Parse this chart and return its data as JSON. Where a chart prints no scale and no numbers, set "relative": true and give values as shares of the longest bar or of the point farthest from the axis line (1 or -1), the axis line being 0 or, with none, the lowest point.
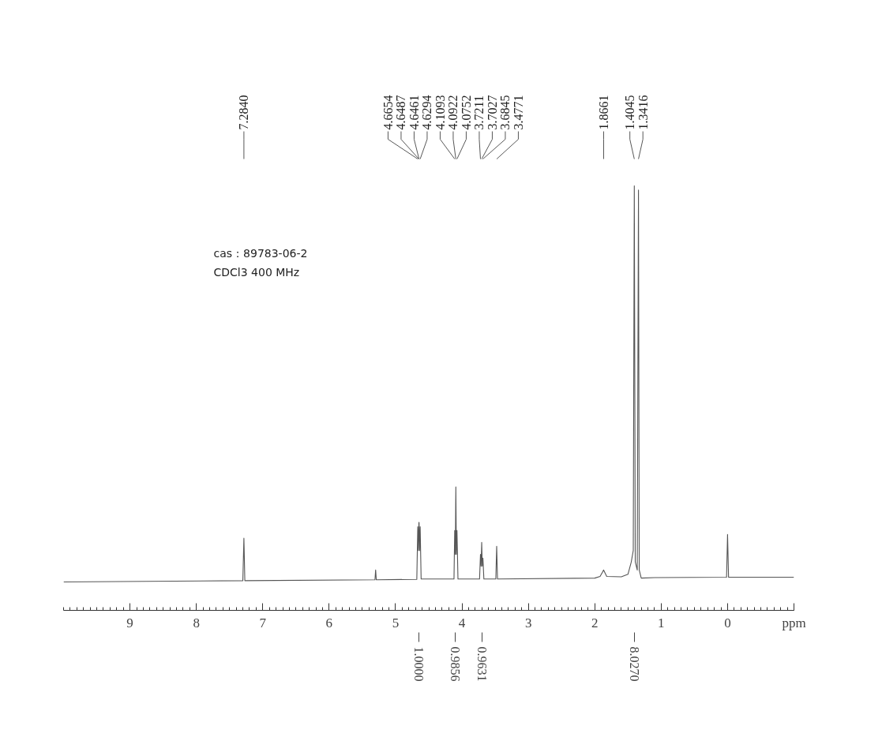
{
  "chart_data": {
    "type": "line",
    "relative": true,
    "xlabel": "ppm",
    "xlim": [
      10,
      -1
    ],
    "xticks": [
      9,
      8,
      7,
      6,
      5,
      4,
      3,
      2,
      1,
      0
    ],
    "grid": false,
    "marker": "none",
    "line_style": "solid",
    "x": [
      10,
      7.3,
      7.284,
      7.27,
      5.31,
      5.3,
      5.29,
      4.68,
      4.6654,
      4.657,
      4.6487,
      4.6461,
      4.638,
      4.6294,
      4.615,
      4.12,
      4.1093,
      4.1,
      4.0922,
      4.084,
      4.0752,
      4.06,
      3.735,
      3.7211,
      3.712,
      3.7027,
      3.694,
      3.6845,
      3.67,
      3.49,
      3.4771,
      3.465,
      2.0,
      1.92,
      1.8661,
      1.82,
      1.6,
      1.5,
      1.45,
      1.42,
      1.4045,
      1.39,
      1.36,
      1.3416,
      1.33,
      1.3,
      1.1,
      0.015,
      0,
      -0.015,
      -1
    ],
    "series": [
      {
        "color": "#555555",
        "values": [
          0.067,
          0.07,
          0.17,
          0.07,
          0.072,
          0.095,
          0.072,
          0.073,
          0.197,
          0.141,
          0.207,
          0.207,
          0.141,
          0.197,
          0.074,
          0.074,
          0.188,
          0.132,
          0.291,
          0.132,
          0.188,
          0.074,
          0.074,
          0.132,
          0.104,
          0.16,
          0.104,
          0.123,
          0.074,
          0.074,
          0.151,
          0.074,
          0.076,
          0.08,
          0.095,
          0.08,
          0.079,
          0.085,
          0.114,
          0.141,
          1.0,
          0.114,
          0.095,
          0.99,
          0.095,
          0.076,
          0.077,
          0.078,
          0.179,
          0.078,
          0.078
        ]
      }
    ],
    "annotations": [
      {
        "text": "7.2840",
        "x": 7.284
      },
      {
        "text": "4.6654",
        "x": 4.6654
      },
      {
        "text": "4.6487",
        "x": 4.6487
      },
      {
        "text": "4.6461",
        "x": 4.6461
      },
      {
        "text": "4.6294",
        "x": 4.6294
      },
      {
        "text": "4.1093",
        "x": 4.1093
      },
      {
        "text": "4.0922",
        "x": 4.0922
      },
      {
        "text": "4.0752",
        "x": 4.0752
      },
      {
        "text": "3.7211",
        "x": 3.7211
      },
      {
        "text": "3.7027",
        "x": 3.7027
      },
      {
        "text": "3.6845",
        "x": 3.6845
      },
      {
        "text": "3.4771",
        "x": 3.4771
      },
      {
        "text": "1.8661",
        "x": 1.8661
      },
      {
        "text": "1.4045",
        "x": 1.4045
      },
      {
        "text": "1.3416",
        "x": 1.3416
      },
      {
        "text": "1.0000",
        "x": 4.65
      },
      {
        "text": "0.9856",
        "x": 4.1
      },
      {
        "text": "0.9631",
        "x": 3.7
      },
      {
        "text": "8.0270",
        "x": 1.4
      },
      "cas：89783-06-2",
      "CDCl3   400 MHz"
    ]
  }
}
